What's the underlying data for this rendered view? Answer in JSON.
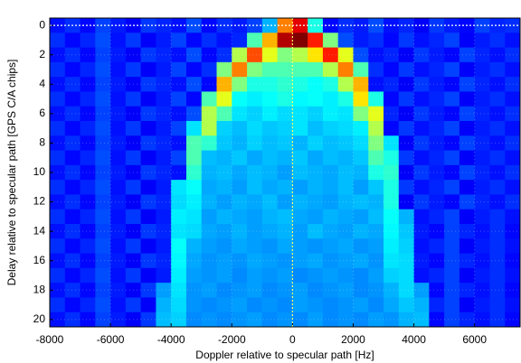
{
  "chart_data": {
    "type": "heatmap",
    "colormap": "jet",
    "x_label": "Doppler relative to specular path [Hz]",
    "y_label": "Delay relative to specular path [GPS C/A chips]",
    "x": [
      -7750,
      -7250,
      -6750,
      -6250,
      -5750,
      -5250,
      -4750,
      -4250,
      -3750,
      -3250,
      -2750,
      -2250,
      -1750,
      -1250,
      -750,
      -250,
      250,
      750,
      1250,
      1750,
      2250,
      2750,
      3250,
      3750,
      4250,
      4750,
      5250,
      5750,
      6250,
      6750,
      7250
    ],
    "y": [
      0,
      1,
      2,
      3,
      4,
      5,
      6,
      7,
      8,
      9,
      10,
      11,
      12,
      13,
      14,
      15,
      16,
      17,
      18,
      19,
      20
    ],
    "xlim": [
      -8000,
      7500
    ],
    "ylim": [
      20.5,
      -0.5
    ],
    "xticks": [
      -8000,
      -6000,
      -4000,
      -2000,
      0,
      2000,
      4000,
      6000
    ],
    "yticks": [
      0,
      2,
      4,
      6,
      8,
      10,
      12,
      14,
      16,
      18,
      20
    ],
    "grid": true,
    "vline": {
      "value": 0,
      "color": "#ffff66"
    },
    "hline": {
      "value": 0,
      "color": "#ffffff"
    },
    "values": [
      [
        14,
        17,
        13,
        19,
        15,
        12,
        18,
        16,
        14,
        20,
        13,
        17,
        15,
        19,
        30,
        75,
        90,
        40,
        13,
        17,
        15,
        20,
        14,
        16,
        12,
        18,
        15,
        13,
        19,
        16,
        17
      ],
      [
        17,
        13,
        16,
        20,
        14,
        18,
        12,
        15,
        19,
        13,
        17,
        14,
        16,
        45,
        70,
        95,
        100,
        85,
        50,
        20,
        15,
        17,
        13,
        18,
        14,
        16,
        19,
        12,
        15,
        17,
        14
      ],
      [
        14,
        17,
        13,
        19,
        15,
        12,
        18,
        16,
        14,
        20,
        13,
        17,
        55,
        80,
        60,
        50,
        55,
        65,
        85,
        60,
        20,
        14,
        16,
        12,
        18,
        15,
        13,
        19,
        16,
        14,
        17
      ],
      [
        17,
        13,
        16,
        20,
        14,
        18,
        12,
        15,
        19,
        13,
        17,
        50,
        75,
        50,
        45,
        45,
        45,
        45,
        55,
        75,
        45,
        17,
        13,
        18,
        14,
        16,
        19,
        12,
        15,
        17,
        14
      ],
      [
        14,
        17,
        13,
        19,
        15,
        12,
        18,
        16,
        14,
        20,
        13,
        70,
        50,
        40,
        40,
        42,
        40,
        38,
        40,
        55,
        70,
        14,
        16,
        12,
        18,
        15,
        13,
        19,
        16,
        14,
        17
      ],
      [
        17,
        13,
        16,
        20,
        14,
        18,
        12,
        15,
        19,
        13,
        45,
        60,
        38,
        36,
        38,
        40,
        37,
        38,
        36,
        40,
        65,
        40,
        13,
        18,
        14,
        16,
        19,
        12,
        15,
        17,
        14
      ],
      [
        14,
        17,
        13,
        19,
        15,
        12,
        18,
        16,
        14,
        20,
        55,
        45,
        35,
        33,
        36,
        34,
        35,
        33,
        36,
        35,
        50,
        60,
        16,
        12,
        18,
        15,
        13,
        19,
        16,
        14,
        17
      ],
      [
        17,
        13,
        16,
        20,
        14,
        18,
        12,
        15,
        19,
        35,
        55,
        33,
        31,
        34,
        32,
        33,
        35,
        31,
        33,
        34,
        36,
        55,
        13,
        18,
        14,
        16,
        19,
        12,
        15,
        17,
        14
      ],
      [
        14,
        17,
        13,
        19,
        15,
        12,
        18,
        16,
        14,
        45,
        42,
        32,
        30,
        33,
        31,
        32,
        30,
        33,
        31,
        32,
        34,
        50,
        35,
        12,
        18,
        15,
        13,
        19,
        16,
        14,
        17
      ],
      [
        17,
        13,
        16,
        20,
        14,
        18,
        12,
        15,
        19,
        45,
        31,
        30,
        32,
        29,
        31,
        30,
        32,
        29,
        31,
        30,
        32,
        45,
        40,
        18,
        14,
        16,
        19,
        12,
        15,
        17,
        14
      ],
      [
        14,
        17,
        13,
        19,
        15,
        12,
        18,
        16,
        14,
        42,
        30,
        31,
        29,
        31,
        30,
        28,
        31,
        30,
        29,
        31,
        30,
        40,
        42,
        12,
        18,
        15,
        13,
        19,
        16,
        14,
        17
      ],
      [
        17,
        13,
        16,
        20,
        14,
        18,
        12,
        15,
        35,
        38,
        29,
        30,
        28,
        31,
        29,
        30,
        28,
        30,
        29,
        31,
        28,
        32,
        40,
        18,
        14,
        16,
        19,
        12,
        15,
        17,
        14
      ],
      [
        14,
        17,
        13,
        19,
        15,
        12,
        18,
        16,
        34,
        36,
        30,
        28,
        30,
        29,
        31,
        28,
        30,
        29,
        28,
        30,
        31,
        30,
        40,
        12,
        18,
        15,
        13,
        19,
        16,
        14,
        17
      ],
      [
        17,
        13,
        16,
        20,
        14,
        18,
        12,
        15,
        36,
        35,
        28,
        30,
        29,
        28,
        30,
        31,
        29,
        28,
        30,
        29,
        28,
        31,
        38,
        30,
        14,
        16,
        19,
        12,
        15,
        17,
        14
      ],
      [
        14,
        17,
        13,
        19,
        15,
        12,
        18,
        16,
        35,
        34,
        29,
        28,
        30,
        28,
        29,
        30,
        28,
        31,
        29,
        28,
        30,
        29,
        37,
        32,
        15,
        13,
        19,
        16,
        14,
        17,
        13
      ],
      [
        17,
        13,
        16,
        20,
        14,
        18,
        12,
        15,
        38,
        30,
        28,
        27,
        29,
        28,
        27,
        29,
        28,
        27,
        28,
        29,
        27,
        28,
        36,
        33,
        14,
        16,
        19,
        12,
        15,
        17,
        14
      ],
      [
        14,
        17,
        13,
        19,
        15,
        12,
        18,
        16,
        37,
        29,
        27,
        28,
        27,
        29,
        28,
        27,
        28,
        29,
        27,
        28,
        29,
        27,
        35,
        34,
        15,
        13,
        19,
        16,
        14,
        17,
        13
      ],
      [
        17,
        13,
        16,
        20,
        14,
        18,
        12,
        15,
        36,
        28,
        27,
        28,
        26,
        28,
        27,
        28,
        26,
        27,
        28,
        27,
        26,
        28,
        33,
        34,
        14,
        16,
        19,
        12,
        15,
        17,
        14
      ],
      [
        14,
        17,
        13,
        19,
        15,
        12,
        18,
        28,
        35,
        27,
        28,
        26,
        27,
        28,
        26,
        27,
        28,
        26,
        27,
        28,
        26,
        27,
        30,
        34,
        28,
        13,
        19,
        16,
        14,
        17,
        13
      ],
      [
        17,
        13,
        16,
        20,
        14,
        18,
        12,
        30,
        34,
        27,
        26,
        27,
        28,
        26,
        27,
        26,
        28,
        27,
        26,
        27,
        28,
        26,
        29,
        32,
        30,
        16,
        19,
        12,
        15,
        17,
        14
      ],
      [
        14,
        17,
        13,
        19,
        15,
        12,
        18,
        31,
        33,
        26,
        27,
        26,
        27,
        28,
        26,
        27,
        26,
        28,
        26,
        27,
        26,
        28,
        27,
        30,
        31,
        13,
        19,
        16,
        14,
        17,
        13
      ]
    ]
  }
}
